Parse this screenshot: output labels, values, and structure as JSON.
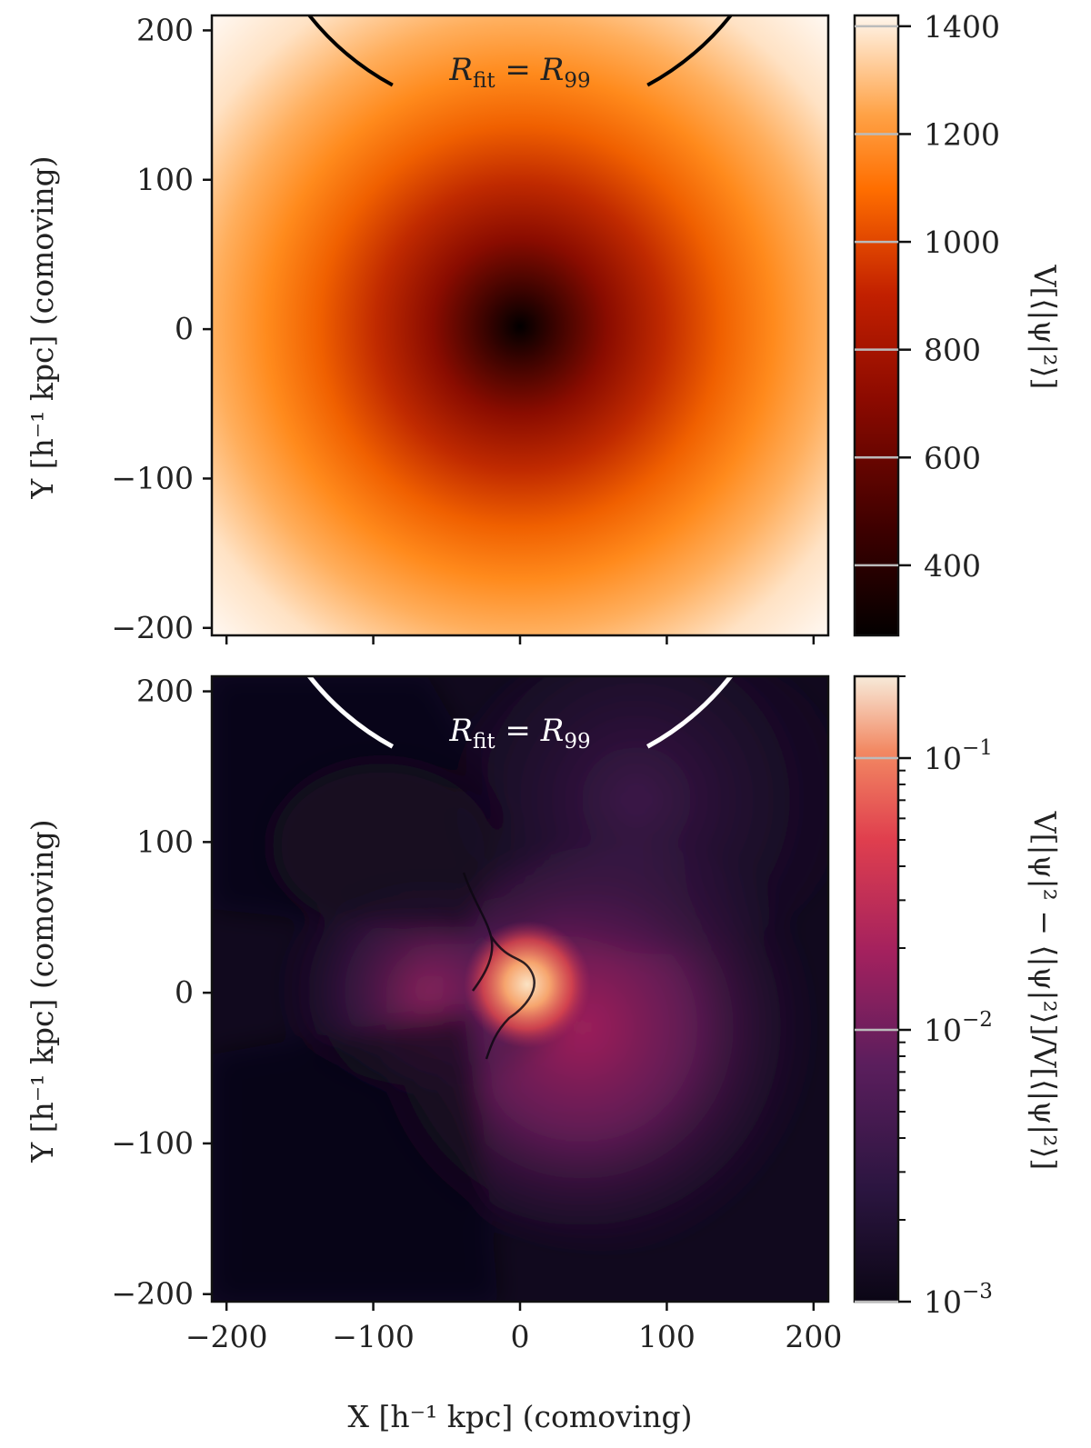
{
  "chart_data": [
    {
      "type": "heatmap",
      "panel": "top",
      "xlim": [
        -210,
        210
      ],
      "ylim": [
        -205,
        210
      ],
      "xticks": [
        -200,
        -100,
        0,
        100,
        200
      ],
      "yticks": [
        -200,
        -100,
        0,
        100,
        200
      ],
      "ytick_labels": [
        "−200",
        "−100",
        "0",
        "100",
        "200"
      ],
      "ylabel": "Y [h⁻¹ kpc] (comoving)",
      "annotation": "R_fit = R_99",
      "circle_radius": 185,
      "circle_gap_deg": [
        62,
        118
      ],
      "circle_color": "#000000",
      "field": "radial profile, minimum at center (0,0), maximum at corners",
      "colorbar": {
        "label": "V[⟨|ψ|²⟩]",
        "scale": "linear",
        "range": [
          270,
          1420
        ],
        "ticks": [
          400,
          600,
          800,
          1000,
          1200,
          1400
        ],
        "tick_labels": [
          "400",
          "600",
          "800",
          "1000",
          "1200",
          "1400"
        ],
        "colormap": [
          "#030000",
          "#3d0000",
          "#8c0a00",
          "#c22000",
          "#ff6e00",
          "#ffa246",
          "#fff6ec"
        ]
      }
    },
    {
      "type": "heatmap",
      "panel": "bottom",
      "xlim": [
        -210,
        210
      ],
      "ylim": [
        -205,
        210
      ],
      "xticks": [
        -200,
        -100,
        0,
        100,
        200
      ],
      "xtick_labels": [
        "−200",
        "−100",
        "0",
        "100",
        "200"
      ],
      "yticks": [
        -200,
        -100,
        0,
        100,
        200
      ],
      "ytick_labels": [
        "−200",
        "−100",
        "0",
        "100",
        "200"
      ],
      "xlabel": "X [h⁻¹ kpc] (comoving)",
      "ylabel": "Y [h⁻¹ kpc] (comoving)",
      "annotation": "R_fit = R_99",
      "circle_radius": 185,
      "circle_gap_deg": [
        62,
        118
      ],
      "circle_color": "#ffffff",
      "field": "asymmetric structure, peak near center, low values in upper-left and lower-left",
      "colorbar": {
        "label": "V[|ψ|² − ⟨|ψ|²⟩]/V[⟨|ψ|²⟩]",
        "scale": "log",
        "range": [
          0.001,
          0.2
        ],
        "ticks": [
          0.001,
          0.01,
          0.1
        ],
        "tick_labels": [
          "10",
          "10",
          "10"
        ],
        "tick_exponents": [
          "−3",
          "−2",
          "−1"
        ],
        "colormap": [
          "#0b0615",
          "#2b1540",
          "#5b1e5d",
          "#a4215e",
          "#e03f4e",
          "#f28862",
          "#f7ead9"
        ]
      }
    }
  ]
}
